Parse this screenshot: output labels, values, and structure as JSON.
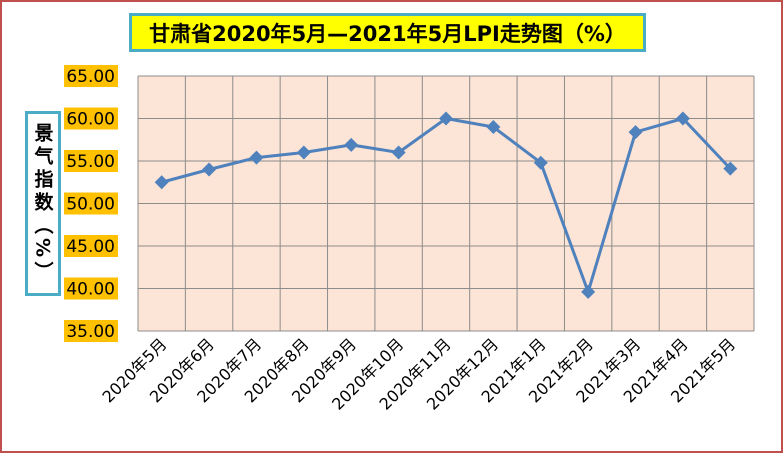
{
  "chart_data": {
    "type": "line",
    "title": "甘肃省2020年5月—2021年5月LPI走势图（%）",
    "ylabel": "景气指数（%）",
    "xlabel": "",
    "categories": [
      "2020年5月",
      "2020年6月",
      "2020年7月",
      "2020年8月",
      "2020年9月",
      "2020年10月",
      "2020年11月",
      "2020年12月",
      "2021年1月",
      "2021年2月",
      "2021年3月",
      "2021年4月",
      "2021年5月"
    ],
    "series": [
      {
        "values": [
          52.5,
          54.0,
          55.4,
          56.0,
          56.9,
          56.0,
          60.0,
          59.0,
          54.8,
          39.6,
          58.4,
          60.0,
          54.1
        ]
      }
    ],
    "ylim": [
      35,
      65
    ],
    "yticks": [
      "35.00",
      "40.00",
      "45.00",
      "50.00",
      "55.00",
      "60.00",
      "65.00"
    ],
    "grid": true,
    "colors": {
      "line": "#4f81bd",
      "plot_bg": "#fce4d6",
      "grid": "#8c8c8c",
      "tick_bg": "#ffc000",
      "title_bg": "#ffff00",
      "box_border": "#4bacc6",
      "frame_border": "#c0504d"
    }
  }
}
